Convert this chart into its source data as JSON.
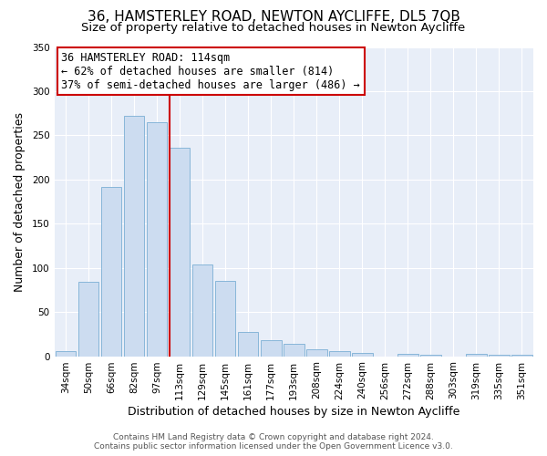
{
  "title": "36, HAMSTERLEY ROAD, NEWTON AYCLIFFE, DL5 7QB",
  "subtitle": "Size of property relative to detached houses in Newton Aycliffe",
  "xlabel": "Distribution of detached houses by size in Newton Aycliffe",
  "ylabel": "Number of detached properties",
  "bar_color": "#ccdcf0",
  "bar_edge_color": "#7bafd4",
  "categories": [
    "34sqm",
    "50sqm",
    "66sqm",
    "82sqm",
    "97sqm",
    "113sqm",
    "129sqm",
    "145sqm",
    "161sqm",
    "177sqm",
    "193sqm",
    "208sqm",
    "224sqm",
    "240sqm",
    "256sqm",
    "272sqm",
    "288sqm",
    "303sqm",
    "319sqm",
    "335sqm",
    "351sqm"
  ],
  "values": [
    6,
    84,
    192,
    272,
    265,
    236,
    104,
    85,
    27,
    18,
    14,
    8,
    6,
    4,
    0,
    3,
    2,
    0,
    3,
    2,
    2
  ],
  "ylim": [
    0,
    350
  ],
  "yticks": [
    0,
    50,
    100,
    150,
    200,
    250,
    300,
    350
  ],
  "vline_index": 5,
  "vline_color": "#cc0000",
  "annotation_title": "36 HAMSTERLEY ROAD: 114sqm",
  "annotation_line1": "← 62% of detached houses are smaller (814)",
  "annotation_line2": "37% of semi-detached houses are larger (486) →",
  "annotation_box_color": "#ffffff",
  "annotation_box_edge": "#cc0000",
  "footer1": "Contains HM Land Registry data © Crown copyright and database right 2024.",
  "footer2": "Contains public sector information licensed under the Open Government Licence v3.0.",
  "background_color": "#ffffff",
  "plot_background": "#e8eef8",
  "title_fontsize": 11,
  "subtitle_fontsize": 9.5,
  "xlabel_fontsize": 9,
  "ylabel_fontsize": 9,
  "tick_fontsize": 7.5,
  "annotation_fontsize": 8.5,
  "footer_fontsize": 6.5
}
